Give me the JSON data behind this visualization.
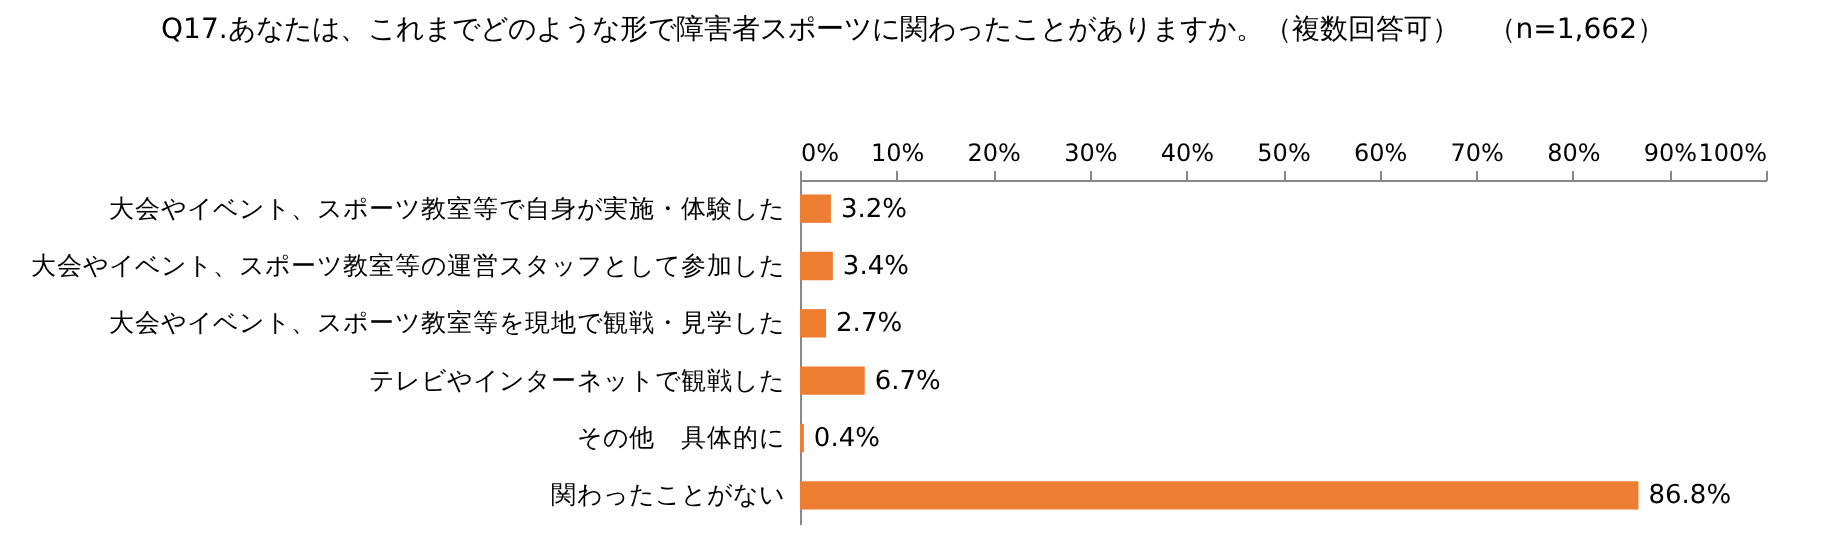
{
  "chart_data": {
    "type": "bar",
    "orientation": "horizontal",
    "title": "Q17.あなたは、これまでどのような形で障害者スポーツに関わったことがありますか。（複数回答可）　（n=1,662）",
    "categories": [
      "大会やイベント、スポーツ教室等で自身が実施・体験した",
      "大会やイベント、スポーツ教室等の運営スタッフとして参加した",
      "大会やイベント、スポーツ教室等を現地で観戦・見学した",
      "テレビやインターネットで観戦した",
      "その他　具体的に",
      "関わったことがない"
    ],
    "values": [
      3.2,
      3.4,
      2.7,
      6.7,
      0.4,
      86.8
    ],
    "value_labels": [
      "3.2%",
      "3.4%",
      "2.7%",
      "6.7%",
      "0.4%",
      "86.8%"
    ],
    "color": "#ed7d31",
    "xlim": [
      0,
      100
    ],
    "xticks": [
      {
        "value": 0,
        "label": "0%"
      },
      {
        "value": 10,
        "label": "10%"
      },
      {
        "value": 20,
        "label": "20%"
      },
      {
        "value": 30,
        "label": "30%"
      },
      {
        "value": 40,
        "label": "40%"
      },
      {
        "value": 50,
        "label": "50%"
      },
      {
        "value": 60,
        "label": "60%"
      },
      {
        "value": 70,
        "label": "70%"
      },
      {
        "value": 80,
        "label": "80%"
      },
      {
        "value": 90,
        "label": "90%"
      },
      {
        "value": 100,
        "label": "100%"
      }
    ],
    "grid": false
  }
}
